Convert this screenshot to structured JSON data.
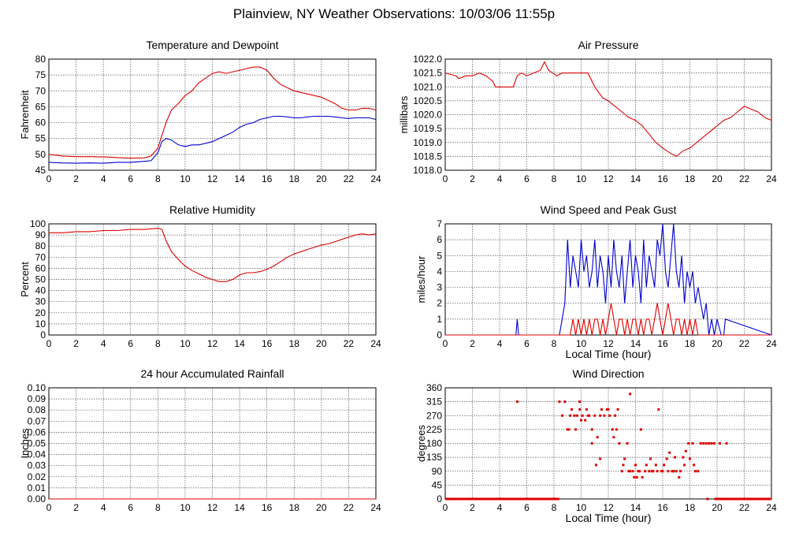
{
  "page_title": "Plainview, NY Weather Observations: 10/03/06 11:55p",
  "colors": {
    "series_red": "#dd0000",
    "series_blue": "#0000cc",
    "grid": "#000000"
  },
  "chart_data": [
    {
      "id": "temperature-dewpoint",
      "type": "line",
      "title": "Temperature and Dewpoint",
      "xlabel": "",
      "ylabel": "Fahrenheit",
      "xlim": [
        0,
        24
      ],
      "ylim": [
        45,
        80
      ],
      "x_ticks": [
        "0",
        "2",
        "4",
        "6",
        "8",
        "10",
        "12",
        "14",
        "16",
        "18",
        "20",
        "22",
        "24"
      ],
      "y_ticks": [
        "45",
        "50",
        "55",
        "60",
        "65",
        "70",
        "75",
        "80"
      ],
      "grid": true,
      "series": [
        {
          "color": "#dd0000",
          "x": [
            0,
            1,
            2,
            3,
            4,
            5,
            6,
            7,
            7.5,
            8,
            8.3,
            8.6,
            9,
            9.5,
            10,
            10.5,
            11,
            11.5,
            12,
            12.5,
            13,
            13.5,
            14,
            14.5,
            15,
            15.5,
            16,
            16.5,
            17,
            17.5,
            18,
            18.5,
            19,
            19.5,
            20,
            20.5,
            21,
            21.5,
            22,
            22.5,
            23,
            23.5,
            24
          ],
          "y": [
            50,
            49.5,
            49.3,
            49.3,
            49.2,
            49,
            48.8,
            48.9,
            49.5,
            52,
            56,
            60,
            64,
            66,
            68.5,
            70,
            72.5,
            74,
            75.5,
            76,
            75.5,
            76,
            76.5,
            77,
            77.5,
            77.5,
            76.5,
            74,
            72,
            71,
            70,
            69.5,
            69,
            68.5,
            68,
            67,
            66,
            64.5,
            64,
            64,
            64.5,
            64.5,
            64
          ]
        },
        {
          "color": "#0000cc",
          "x": [
            0,
            1,
            2,
            3,
            4,
            5,
            6,
            7,
            7.5,
            8,
            8.3,
            8.6,
            9,
            9.5,
            10,
            10.5,
            11,
            11.5,
            12,
            12.5,
            13,
            13.5,
            14,
            14.5,
            15,
            15.5,
            16,
            16.5,
            17,
            17.5,
            18,
            18.5,
            19,
            19.5,
            20,
            20.5,
            21,
            21.5,
            22,
            22.5,
            23,
            23.5,
            24
          ],
          "y": [
            47.5,
            47.3,
            47.2,
            47.3,
            47.2,
            47.5,
            47.5,
            47.8,
            48,
            50.5,
            54,
            55,
            54.5,
            53,
            52.5,
            53,
            53,
            53.5,
            54,
            55,
            56,
            57,
            58.5,
            59.5,
            60,
            61,
            61.5,
            62,
            62,
            61.8,
            61.5,
            61.5,
            61.8,
            62,
            62,
            62,
            61.8,
            61.5,
            61.3,
            61.5,
            61.5,
            61.5,
            61
          ]
        }
      ]
    },
    {
      "id": "air-pressure",
      "type": "line",
      "title": "Air Pressure",
      "xlabel": "",
      "ylabel": "millibars",
      "xlim": [
        0,
        24
      ],
      "ylim": [
        1018.0,
        1022.0
      ],
      "x_ticks": [
        "0",
        "2",
        "4",
        "6",
        "8",
        "10",
        "12",
        "14",
        "16",
        "18",
        "20",
        "22",
        "24"
      ],
      "y_ticks": [
        "1018.0",
        "1018.5",
        "1019.0",
        "1019.5",
        "1020.0",
        "1020.5",
        "1021.0",
        "1021.5",
        "1022.0"
      ],
      "grid": true,
      "series": [
        {
          "color": "#dd0000",
          "x": [
            0,
            0.8,
            1,
            1.5,
            2,
            2.5,
            3,
            3.5,
            3.7,
            4,
            5,
            5.3,
            5.6,
            6,
            6.5,
            7,
            7.3,
            7.6,
            7.9,
            8.2,
            8.6,
            9,
            9.5,
            10,
            10.5,
            11,
            11.3,
            11.6,
            12,
            12.5,
            13,
            13.5,
            14,
            14.5,
            15,
            15.5,
            16,
            16.3,
            16.6,
            17,
            17.5,
            18,
            18.5,
            19,
            19.5,
            20,
            20.5,
            21,
            21.5,
            22,
            22.5,
            23,
            23.5,
            24
          ],
          "y": [
            1021.5,
            1021.4,
            1021.3,
            1021.4,
            1021.4,
            1021.5,
            1021.4,
            1021.2,
            1021.0,
            1021.0,
            1021.0,
            1021.4,
            1021.5,
            1021.4,
            1021.5,
            1021.6,
            1021.9,
            1021.6,
            1021.5,
            1021.4,
            1021.5,
            1021.5,
            1021.5,
            1021.5,
            1021.5,
            1021.0,
            1020.8,
            1020.6,
            1020.5,
            1020.3,
            1020.1,
            1019.9,
            1019.8,
            1019.6,
            1019.3,
            1019.0,
            1018.8,
            1018.7,
            1018.6,
            1018.5,
            1018.7,
            1018.8,
            1019.0,
            1019.2,
            1019.4,
            1019.6,
            1019.8,
            1019.9,
            1020.1,
            1020.3,
            1020.2,
            1020.1,
            1019.9,
            1019.8
          ]
        }
      ]
    },
    {
      "id": "relative-humidity",
      "type": "line",
      "title": "Relative Humidity",
      "xlabel": "",
      "ylabel": "Percent",
      "xlim": [
        0,
        24
      ],
      "ylim": [
        0,
        100
      ],
      "x_ticks": [
        "0",
        "2",
        "4",
        "6",
        "8",
        "10",
        "12",
        "14",
        "16",
        "18",
        "20",
        "22",
        "24"
      ],
      "y_ticks": [
        "0",
        "10",
        "20",
        "30",
        "40",
        "50",
        "60",
        "70",
        "80",
        "90",
        "100"
      ],
      "grid": true,
      "series": [
        {
          "color": "#dd0000",
          "x": [
            0,
            1,
            2,
            3,
            4,
            5,
            6,
            7,
            8,
            8.3,
            8.6,
            9,
            9.5,
            10,
            10.5,
            11,
            11.5,
            12,
            12.5,
            13,
            13.5,
            14,
            14.5,
            15,
            15.5,
            16,
            16.5,
            17,
            17.5,
            18,
            18.5,
            19,
            19.5,
            20,
            20.5,
            21,
            21.5,
            22,
            22.5,
            23,
            23.5,
            24
          ],
          "y": [
            92,
            92,
            93,
            93,
            94,
            94,
            95,
            95,
            96,
            95,
            85,
            75,
            68,
            62,
            58,
            55,
            52,
            50,
            48,
            48,
            50,
            54,
            56,
            56,
            57,
            59,
            62,
            66,
            70,
            73,
            75,
            77,
            79,
            81,
            82,
            84,
            86,
            88,
            90,
            91,
            90,
            91
          ]
        }
      ]
    },
    {
      "id": "wind-speed-gust",
      "type": "line",
      "title": "Wind Speed and Peak Gust",
      "xlabel": "Local Time (hour)",
      "ylabel": "miles/hour",
      "xlim": [
        0,
        24
      ],
      "ylim": [
        0,
        7
      ],
      "x_ticks": [
        "0",
        "2",
        "4",
        "6",
        "8",
        "10",
        "12",
        "14",
        "16",
        "18",
        "20",
        "22",
        "24"
      ],
      "y_ticks": [
        "0",
        "1",
        "2",
        "3",
        "4",
        "5",
        "6",
        "7"
      ],
      "grid": true,
      "series": [
        {
          "color": "#0000cc",
          "x": [
            0,
            5.2,
            5.3,
            5.4,
            8.4,
            8.6,
            8.8,
            9,
            9.2,
            9.4,
            9.6,
            9.8,
            10,
            10.2,
            10.4,
            10.6,
            10.8,
            11,
            11.2,
            11.4,
            11.6,
            11.8,
            12,
            12.2,
            12.4,
            12.6,
            12.8,
            13,
            13.2,
            13.4,
            13.6,
            13.8,
            14,
            14.2,
            14.4,
            14.6,
            14.8,
            15,
            15.2,
            15.4,
            15.6,
            15.8,
            16,
            16.2,
            16.4,
            16.6,
            16.8,
            17,
            17.2,
            17.4,
            17.6,
            17.8,
            18,
            18.2,
            18.4,
            18.6,
            18.8,
            19,
            19.2,
            19.4,
            19.6,
            19.8,
            20,
            20.3,
            20.5,
            20.6,
            24
          ],
          "y": [
            0,
            0,
            1,
            0,
            0,
            1,
            2,
            6,
            3,
            5,
            4,
            3,
            6,
            4,
            5,
            3,
            4,
            6,
            3,
            5,
            4,
            2,
            5,
            3,
            6,
            4,
            3,
            5,
            2,
            4,
            6,
            3,
            5,
            4,
            2,
            6,
            3,
            5,
            4,
            3,
            6,
            5,
            7,
            4,
            3,
            5,
            7,
            4,
            3,
            5,
            2,
            4,
            3,
            4,
            2,
            3,
            2,
            1,
            2,
            0,
            1,
            0,
            1,
            0,
            0,
            1,
            0
          ]
        },
        {
          "color": "#dd0000",
          "x": [
            0,
            9.2,
            9.4,
            9.6,
            9.8,
            10,
            10.2,
            10.4,
            10.6,
            10.8,
            11,
            11.2,
            11.4,
            11.6,
            11.8,
            12,
            12.2,
            12.4,
            12.6,
            12.8,
            13,
            13.2,
            13.4,
            13.6,
            13.8,
            14,
            14.2,
            14.4,
            14.6,
            14.8,
            15,
            15.2,
            15.4,
            15.6,
            15.8,
            16,
            16.2,
            16.4,
            16.6,
            16.8,
            17,
            17.2,
            17.4,
            17.6,
            17.8,
            18,
            18.2,
            18.4,
            18.6,
            24
          ],
          "y": [
            0,
            0,
            1,
            0,
            1,
            0,
            1,
            0,
            1,
            0,
            1,
            1,
            0,
            1,
            0,
            1,
            2,
            1,
            0,
            1,
            1,
            0,
            1,
            0,
            1,
            1,
            0,
            1,
            0,
            1,
            1,
            0,
            1,
            2,
            1,
            0,
            1,
            2,
            1,
            0,
            1,
            1,
            0,
            1,
            0,
            1,
            0,
            1,
            0,
            0
          ]
        }
      ]
    },
    {
      "id": "accumulated-rainfall",
      "type": "line",
      "title": "24 hour Accumulated Rainfall",
      "xlabel": "",
      "ylabel": "Inches",
      "xlim": [
        0,
        24
      ],
      "ylim": [
        0.0,
        0.1
      ],
      "x_ticks": [
        "0",
        "2",
        "4",
        "6",
        "8",
        "10",
        "12",
        "14",
        "16",
        "18",
        "20",
        "22",
        "24"
      ],
      "y_ticks": [
        "0.00",
        "0.01",
        "0.02",
        "0.03",
        "0.04",
        "0.05",
        "0.06",
        "0.07",
        "0.08",
        "0.09",
        "0.10"
      ],
      "grid": true,
      "series": [
        {
          "color": "#dd0000",
          "x": [
            0,
            24
          ],
          "y": [
            0,
            0
          ]
        }
      ]
    },
    {
      "id": "wind-direction",
      "type": "scatter",
      "title": "Wind Direction",
      "xlabel": "Local Time (hour)",
      "ylabel": "degrees",
      "xlim": [
        0,
        24
      ],
      "ylim": [
        0,
        360
      ],
      "x_ticks": [
        "0",
        "2",
        "4",
        "6",
        "8",
        "10",
        "12",
        "14",
        "16",
        "18",
        "20",
        "22",
        "24"
      ],
      "y_ticks": [
        "0",
        "45",
        "90",
        "135",
        "180",
        "225",
        "270",
        "315",
        "360"
      ],
      "grid": true,
      "series": [
        {
          "color": "#dd0000",
          "x": [
            5.3,
            8.4,
            8.6,
            8.8,
            9,
            9.2,
            9.3,
            9.5,
            9.6,
            9.7,
            9.9,
            10,
            10.1,
            10.3,
            10.4,
            10.5,
            10.6,
            10.8,
            11,
            11.1,
            11.2,
            11.4,
            11.5,
            11.7,
            11.9,
            12,
            12.1,
            12.3,
            12.4,
            12.5,
            12.7,
            12.8,
            13,
            13.1,
            13.2,
            13.4,
            13.5,
            13.6,
            13.8,
            13.9,
            14,
            14.1,
            14.3,
            14.4,
            14.5,
            14.7,
            14.8,
            15,
            15.1,
            15.2,
            15.3,
            15.5,
            15.6,
            15.7,
            15.9,
            16,
            16.1,
            16.3,
            16.4,
            16.5,
            16.7,
            16.8,
            16.9,
            17,
            17.2,
            17.3,
            17.5,
            17.6,
            17.7,
            17.9,
            18,
            18.2,
            18.3,
            18.4,
            18.6,
            18.8,
            19,
            19.2,
            19.3,
            19.4,
            19.6,
            19.8,
            20.2,
            20.7,
            9.1,
            9.9,
            10.8,
            11.4,
            12.6,
            13.6,
            14.2
          ],
          "y": [
            315,
            315,
            270,
            315,
            225,
            270,
            290,
            270,
            225,
            270,
            290,
            255,
            270,
            255,
            290,
            270,
            270,
            225,
            270,
            110,
            200,
            270,
            290,
            270,
            290,
            290,
            270,
            225,
            200,
            270,
            290,
            180,
            90,
            110,
            130,
            180,
            90,
            340,
            90,
            70,
            110,
            70,
            90,
            225,
            70,
            90,
            110,
            90,
            130,
            90,
            90,
            110,
            90,
            290,
            90,
            90,
            110,
            130,
            90,
            150,
            90,
            90,
            135,
            90,
            70,
            90,
            135,
            110,
            155,
            180,
            130,
            180,
            110,
            90,
            90,
            180,
            180,
            180,
            0,
            180,
            180,
            180,
            180,
            180,
            225,
            315,
            180,
            130,
            225,
            90,
            90
          ]
        }
      ],
      "baseline_segments": [
        {
          "x": [
            0,
            8.4
          ],
          "y": [
            0,
            0
          ]
        },
        {
          "x": [
            19.8,
            24
          ],
          "y": [
            0,
            0
          ]
        }
      ]
    }
  ]
}
